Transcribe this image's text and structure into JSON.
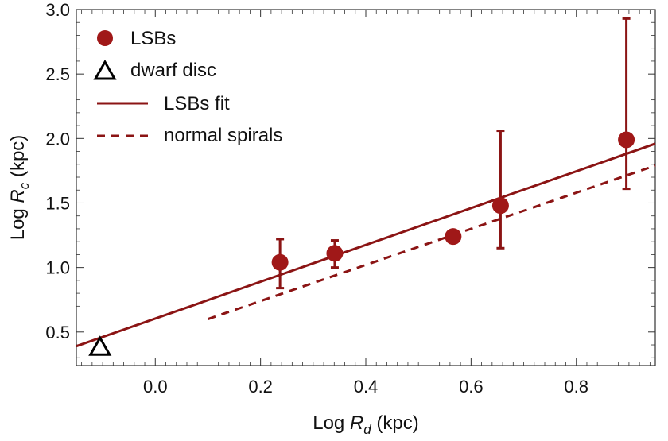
{
  "chart_data": {
    "type": "scatter",
    "xlabel": {
      "prefix": "Log ",
      "var": "R",
      "sub": "d",
      "suffix": " (kpc)"
    },
    "ylabel": {
      "prefix": "Log ",
      "var": "R",
      "sub": "c",
      "suffix": " (kpc)"
    },
    "xlim": [
      -0.15,
      0.95
    ],
    "ylim": [
      0.24,
      3.0
    ],
    "x_ticks": [
      0.0,
      0.2,
      0.4,
      0.6,
      0.8
    ],
    "x_tick_labels": [
      "0.0",
      "0.2",
      "0.4",
      "0.6",
      "0.8"
    ],
    "y_ticks": [
      0.5,
      1.0,
      1.5,
      2.0,
      2.5,
      3.0
    ],
    "y_tick_labels": [
      "0.5",
      "1.0",
      "1.5",
      "2.0",
      "2.5",
      "3.0"
    ],
    "grid": false,
    "legend_position": "top-left",
    "colors": {
      "series": "#8b1414",
      "marker": "#a01818",
      "triangle": "#000000"
    },
    "series": [
      {
        "name": "LSBs",
        "kind": "points-with-errorbars",
        "points": [
          {
            "x": 0.237,
            "y": 1.04,
            "y_low": 0.84,
            "y_high": 1.22
          },
          {
            "x": 0.341,
            "y": 1.11,
            "y_low": 1.0,
            "y_high": 1.21
          },
          {
            "x": 0.566,
            "y": 1.24,
            "y_low": 1.24,
            "y_high": 1.24
          },
          {
            "x": 0.656,
            "y": 1.48,
            "y_low": 1.15,
            "y_high": 2.06
          },
          {
            "x": 0.895,
            "y": 1.99,
            "y_low": 1.61,
            "y_high": 2.93
          }
        ]
      },
      {
        "name": "dwarf disc",
        "kind": "triangle-point",
        "points": [
          {
            "x": -0.105,
            "y": 0.38
          }
        ]
      },
      {
        "name": "LSBs fit",
        "kind": "line-solid",
        "points": [
          {
            "x": -0.15,
            "y": 0.39
          },
          {
            "x": 0.95,
            "y": 1.96
          }
        ]
      },
      {
        "name": "normal spirals",
        "kind": "line-dashed",
        "points": [
          {
            "x": 0.1,
            "y": 0.6
          },
          {
            "x": 0.95,
            "y": 1.79
          }
        ]
      }
    ]
  }
}
